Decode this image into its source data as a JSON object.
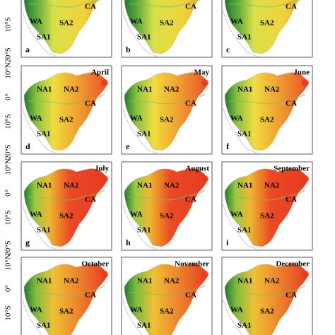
{
  "rows": [
    {
      "lat_labels": [
        "10°S",
        "20°S"
      ],
      "panels": [
        {
          "letter": "a",
          "regions": [
            "CA",
            "WA",
            "SA2",
            "SA1"
          ]
        },
        {
          "letter": "b",
          "regions": [
            "CA",
            "WA",
            "SA2",
            "SA1"
          ]
        },
        {
          "letter": "c",
          "regions": [
            "CA",
            "WA",
            "SA2",
            "SA1"
          ]
        }
      ]
    },
    {
      "lat_labels": [
        "10°N",
        "0°",
        "10°S",
        "20°S"
      ],
      "panels": [
        {
          "title": "April",
          "letter": "d",
          "regions": [
            "NA1",
            "NA2",
            "CA",
            "WA",
            "SA2",
            "SA1"
          ]
        },
        {
          "title": "May",
          "letter": "e",
          "regions": [
            "NA1",
            "NA2",
            "CA",
            "WA",
            "SA2",
            "SA1"
          ]
        },
        {
          "title": "June",
          "letter": "f",
          "regions": [
            "NA1",
            "NA2",
            "CA",
            "WA",
            "SA2",
            "SA1"
          ]
        }
      ]
    },
    {
      "lat_labels": [
        "10°N",
        "0°",
        "10°S",
        "20°S"
      ],
      "panels": [
        {
          "title": "July",
          "letter": "g",
          "regions": [
            "NA1",
            "NA2",
            "CA",
            "WA",
            "SA2",
            "SA1"
          ]
        },
        {
          "title": "August",
          "letter": "h",
          "regions": [
            "NA1",
            "NA2",
            "CA",
            "WA",
            "SA2",
            "SA1"
          ]
        },
        {
          "title": "September",
          "letter": "i",
          "regions": [
            "NA1",
            "NA2",
            "CA",
            "WA",
            "SA2",
            "SA1"
          ]
        }
      ]
    },
    {
      "lat_labels": [
        "10°N",
        "0°",
        "10°S"
      ],
      "panels": [
        {
          "title": "October",
          "regions": [
            "NA1",
            "NA2",
            "CA",
            "WA",
            "SA2",
            "SA1"
          ]
        },
        {
          "title": "November",
          "regions": [
            "NA1",
            "NA2",
            "CA",
            "WA",
            "SA2",
            "SA1"
          ]
        },
        {
          "title": "December",
          "regions": [
            "NA1",
            "NA2",
            "CA",
            "WA",
            "SA2",
            "SA1"
          ]
        }
      ]
    }
  ]
}
